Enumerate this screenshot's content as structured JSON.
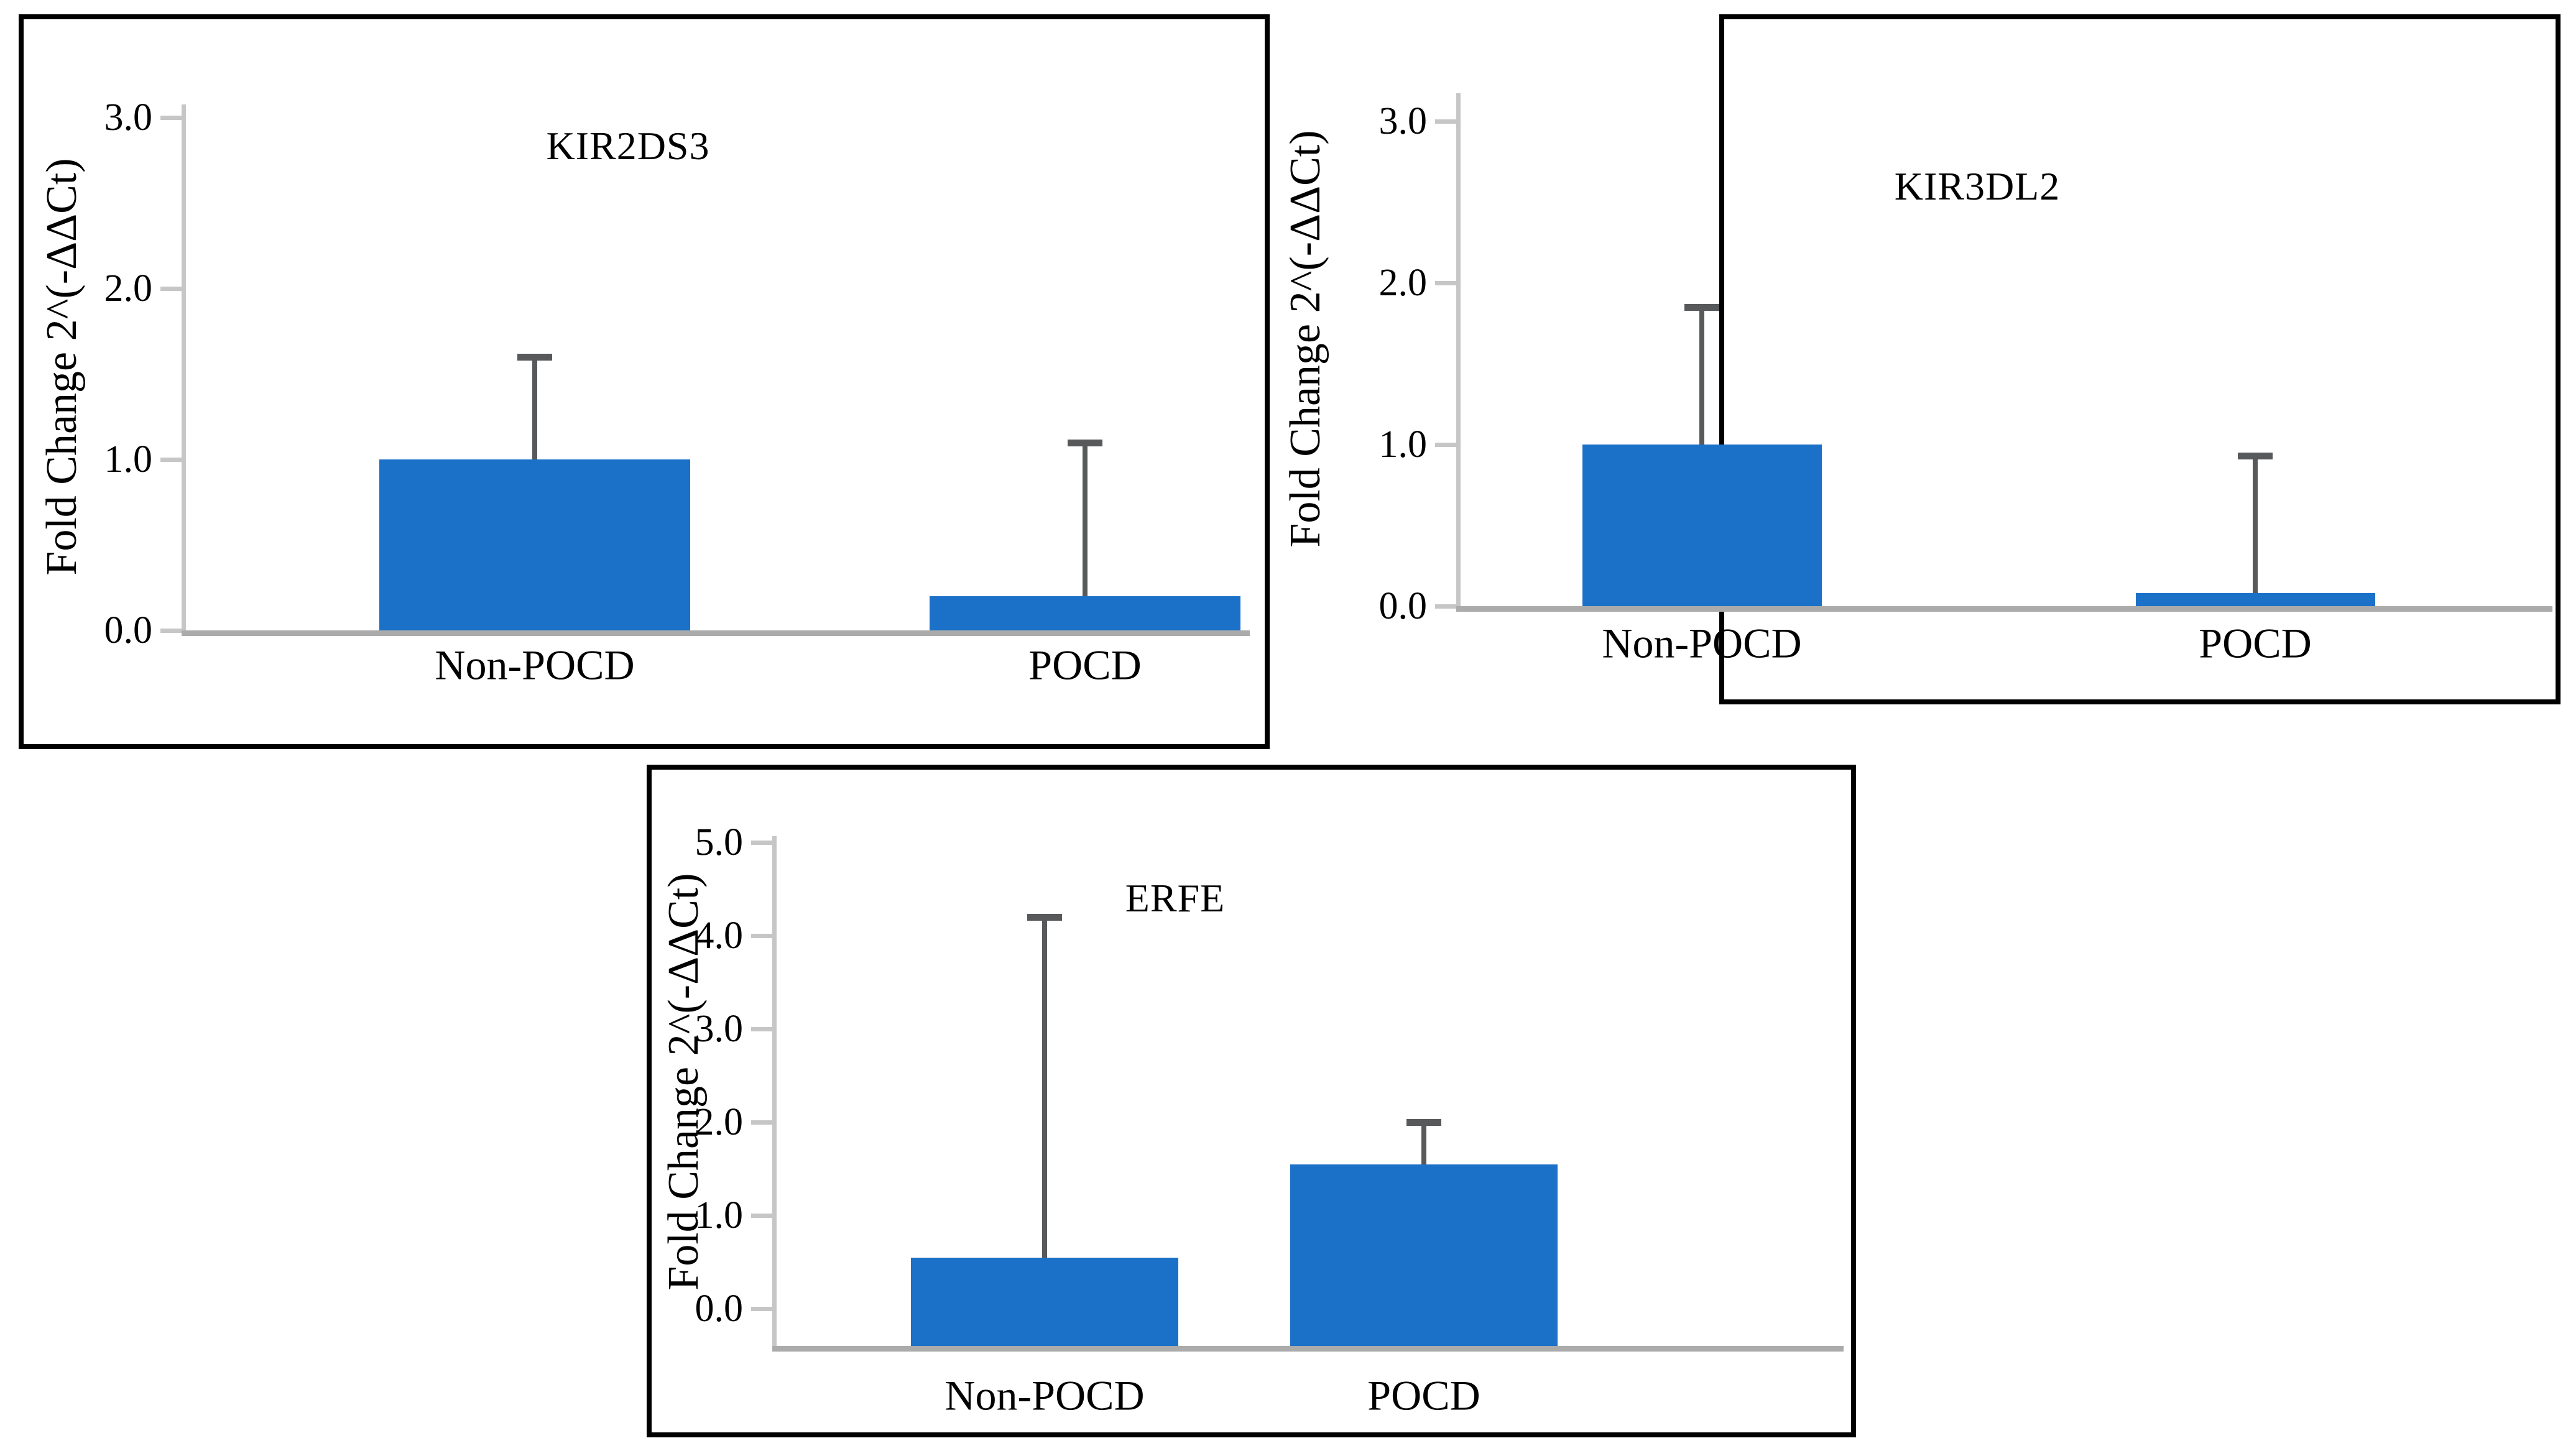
{
  "figure": {
    "background_color": "#ffffff",
    "bar_color": "#1B70C8",
    "error_bar_color": "#58595B",
    "axis_line_color": "#C6C6C6",
    "baseline_color": "#ABABAB",
    "panel_border_color": "#000000",
    "text_color": "#000000"
  },
  "chart_data": [
    {
      "id": "kir2ds3",
      "type": "bar",
      "title": "KIR2DS3",
      "ylabel": "Fold Change 2^(-ΔΔCt)",
      "xlabel": "",
      "categories": [
        "Non-POCD",
        "POCD"
      ],
      "values": [
        1.0,
        0.2
      ],
      "error_up": [
        1.6,
        1.1
      ],
      "ylim": [
        0,
        3
      ],
      "yticks": [
        "0.0",
        "1.0",
        "2.0",
        "3.0"
      ],
      "grid": false,
      "legend_position": "none"
    },
    {
      "id": "kir3dl2",
      "type": "bar",
      "title": "KIR3DL2",
      "ylabel": "Fold Change 2^(-ΔΔCt)",
      "xlabel": "",
      "categories": [
        "Non-POCD",
        "POCD"
      ],
      "values": [
        1.0,
        0.08
      ],
      "error_up": [
        1.85,
        0.93
      ],
      "ylim": [
        0,
        3
      ],
      "yticks": [
        "0.0",
        "1.0",
        "2.0",
        "3.0"
      ],
      "grid": false,
      "legend_position": "none"
    },
    {
      "id": "erfe",
      "type": "bar",
      "title": "ERFE",
      "ylabel": "Fold Change 2^(-ΔΔCt)",
      "xlabel": "",
      "categories": [
        "Non-POCD",
        "POCD"
      ],
      "values": [
        0.55,
        1.55
      ],
      "error_up": [
        4.2,
        2.0
      ],
      "ylim": [
        0,
        5
      ],
      "yticks": [
        "0.0",
        "1.0",
        "2.0",
        "3.0",
        "4.0",
        "5.0"
      ],
      "grid": false,
      "legend_position": "none"
    }
  ]
}
